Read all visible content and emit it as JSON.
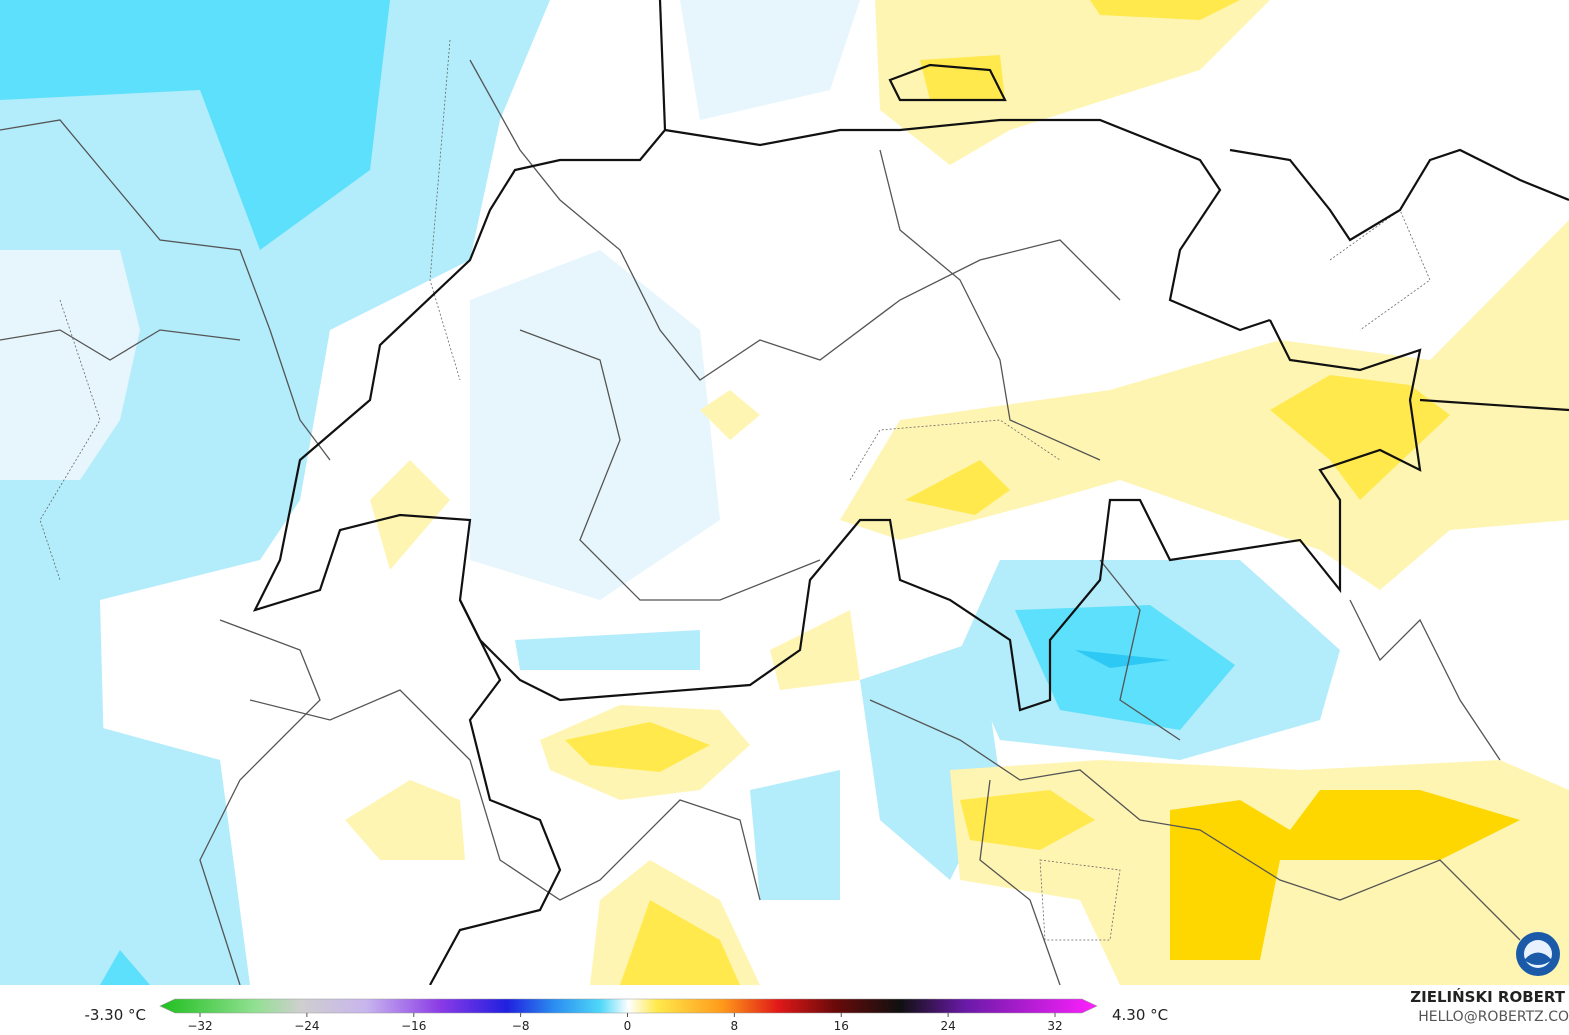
{
  "legend": {
    "min_label": "-3.30 °C",
    "max_label": "4.30 °C",
    "ticks": [
      {
        "value": -32,
        "label": "−32"
      },
      {
        "value": -24,
        "label": "−24"
      },
      {
        "value": -16,
        "label": "−16"
      },
      {
        "value": -8,
        "label": "−8"
      },
      0,
      8,
      16,
      24,
      32
    ]
  },
  "credit": {
    "name": "ZIELIŃSKI ROBERT",
    "contact": "HELLO@ROBERTZ.CO"
  }
}
